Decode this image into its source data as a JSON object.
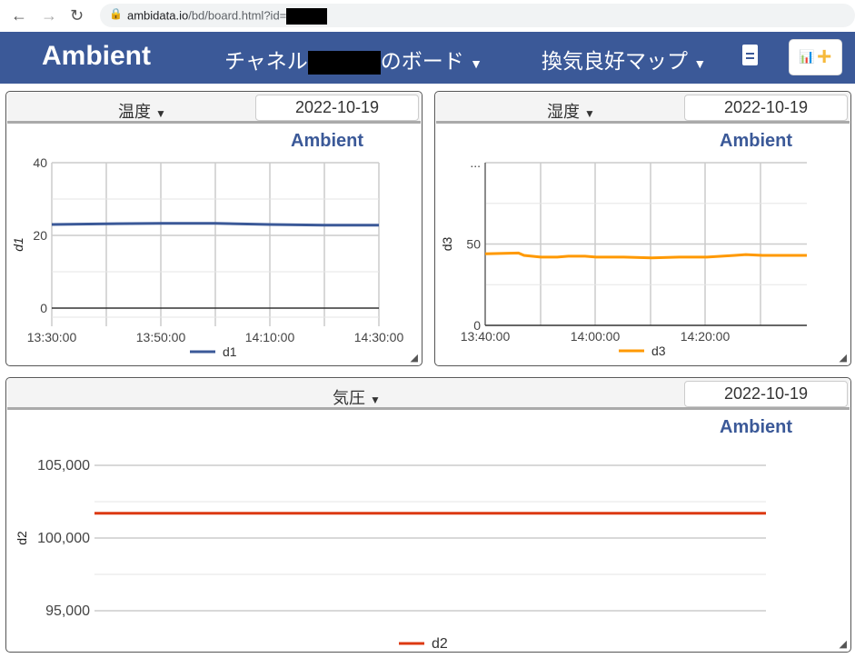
{
  "browser": {
    "url_host": "ambidata.io",
    "url_path": "/bd/board.html?id="
  },
  "header": {
    "brand": "Ambient",
    "board_menu_prefix": "チャネル",
    "board_menu_suffix": "のボード",
    "map_menu": "換気良好マップ",
    "bg": "#3b5998"
  },
  "panels": [
    {
      "title": "温度",
      "date": "2022-10-19",
      "logo": "Ambient"
    },
    {
      "title": "湿度",
      "date": "2022-10-19",
      "logo": "Ambient"
    },
    {
      "title": "気圧",
      "date": "2022-10-19",
      "logo": "Ambient"
    }
  ],
  "chart_data": [
    {
      "type": "line",
      "ylabel": "d1",
      "ylim": [
        -5,
        40
      ],
      "yticks": [
        "0",
        "20",
        "40"
      ],
      "ytick_values": [
        0,
        20,
        40
      ],
      "xticks": [
        "13:30:00",
        "13:50:00",
        "14:10:00",
        "14:30:00"
      ],
      "xlim": [
        "13:30",
        "14:30"
      ],
      "grid": true,
      "legend": "bottom",
      "series": [
        {
          "name": "d1",
          "color": "#3b5998",
          "x": [
            "13:30",
            "13:40",
            "13:50",
            "14:00",
            "14:10",
            "14:20",
            "14:30"
          ],
          "values": [
            23.0,
            23.2,
            23.3,
            23.3,
            23.0,
            22.8,
            22.8
          ]
        }
      ]
    },
    {
      "type": "line",
      "ylabel": "d3",
      "ylim": [
        0,
        100
      ],
      "yticks": [
        "0",
        "50",
        "..."
      ],
      "ytick_values": [
        0,
        50,
        100
      ],
      "xticks": [
        "13:40:00",
        "14:00:00",
        "14:20:00"
      ],
      "xlim": [
        "13:40",
        "14:38"
      ],
      "grid": true,
      "legend": "bottom",
      "series": [
        {
          "name": "d3",
          "color": "#ff9900",
          "x": [
            "13:40",
            "13:46",
            "13:47",
            "13:50",
            "13:53",
            "13:55",
            "13:58",
            "14:00",
            "14:05",
            "14:10",
            "14:15",
            "14:20",
            "14:25",
            "14:27",
            "14:30",
            "14:38"
          ],
          "values": [
            44,
            44.5,
            43,
            42,
            42,
            42.5,
            42.5,
            42,
            42,
            41.5,
            42,
            42,
            43,
            43.5,
            43,
            43
          ]
        }
      ]
    },
    {
      "type": "line",
      "ylabel": "d2",
      "ylim": [
        94000,
        106000
      ],
      "yticks": [
        "95,000",
        "100,000",
        "105,000"
      ],
      "ytick_values": [
        95000,
        100000,
        105000
      ],
      "xticks": [],
      "grid": true,
      "legend": "bottom",
      "series": [
        {
          "name": "d2",
          "color": "#dc3912",
          "x": [
            0,
            1
          ],
          "values": [
            101700,
            101700
          ]
        }
      ]
    }
  ]
}
